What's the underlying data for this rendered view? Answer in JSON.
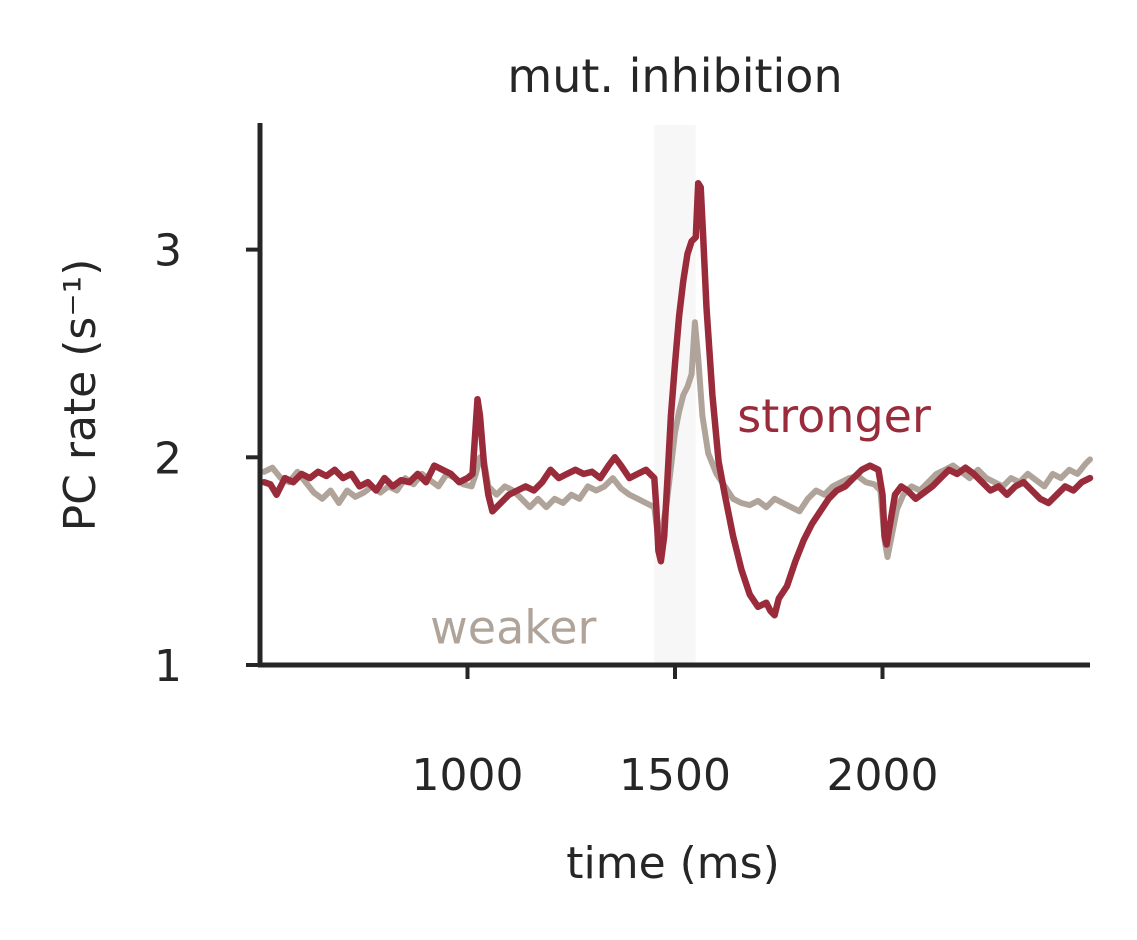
{
  "chart_data": {
    "type": "line",
    "title": "mut. inhibition",
    "xlabel": "time (ms)",
    "ylabel": "PC rate (s⁻¹)",
    "xlim": [
      500,
      2500
    ],
    "ylim": [
      1,
      3.6
    ],
    "xticks": [
      1000,
      1500,
      2000
    ],
    "xtick_labels": [
      "1000",
      "1500",
      "2000"
    ],
    "yticks": [
      1,
      2,
      3
    ],
    "ytick_labels": [
      "1",
      "2",
      "3"
    ],
    "grid": false,
    "legend": "none",
    "shaded_region": {
      "x0": 1450,
      "x1": 1550
    },
    "annotations": [
      {
        "text": "stronger",
        "x": 1650,
        "y": 2.2,
        "color": "#9a2b3a"
      },
      {
        "text": "weaker",
        "x": 910,
        "y": 1.18,
        "color": "#b0a49a"
      }
    ],
    "series": [
      {
        "color": "#b0a49a",
        "points": [
          [
            510,
            1.93
          ],
          [
            530,
            1.95
          ],
          [
            550,
            1.9
          ],
          [
            570,
            1.88
          ],
          [
            590,
            1.93
          ],
          [
            610,
            1.88
          ],
          [
            630,
            1.83
          ],
          [
            650,
            1.8
          ],
          [
            670,
            1.84
          ],
          [
            690,
            1.78
          ],
          [
            710,
            1.84
          ],
          [
            730,
            1.81
          ],
          [
            750,
            1.83
          ],
          [
            770,
            1.86
          ],
          [
            790,
            1.83
          ],
          [
            810,
            1.86
          ],
          [
            830,
            1.84
          ],
          [
            850,
            1.9
          ],
          [
            870,
            1.87
          ],
          [
            890,
            1.92
          ],
          [
            910,
            1.89
          ],
          [
            930,
            1.86
          ],
          [
            950,
            1.92
          ],
          [
            970,
            1.9
          ],
          [
            990,
            1.87
          ],
          [
            1010,
            1.86
          ],
          [
            1020,
            1.92
          ],
          [
            1030,
            2.0
          ],
          [
            1040,
            1.98
          ],
          [
            1050,
            1.86
          ],
          [
            1070,
            1.82
          ],
          [
            1090,
            1.86
          ],
          [
            1110,
            1.84
          ],
          [
            1130,
            1.8
          ],
          [
            1150,
            1.76
          ],
          [
            1170,
            1.8
          ],
          [
            1190,
            1.76
          ],
          [
            1210,
            1.8
          ],
          [
            1230,
            1.78
          ],
          [
            1250,
            1.82
          ],
          [
            1270,
            1.8
          ],
          [
            1290,
            1.86
          ],
          [
            1310,
            1.84
          ],
          [
            1330,
            1.86
          ],
          [
            1350,
            1.9
          ],
          [
            1370,
            1.85
          ],
          [
            1390,
            1.82
          ],
          [
            1410,
            1.8
          ],
          [
            1430,
            1.78
          ],
          [
            1450,
            1.76
          ],
          [
            1460,
            1.6
          ],
          [
            1470,
            1.66
          ],
          [
            1480,
            1.78
          ],
          [
            1490,
            1.95
          ],
          [
            1500,
            2.12
          ],
          [
            1510,
            2.22
          ],
          [
            1520,
            2.3
          ],
          [
            1530,
            2.34
          ],
          [
            1540,
            2.4
          ],
          [
            1548,
            2.65
          ],
          [
            1556,
            2.48
          ],
          [
            1566,
            2.2
          ],
          [
            1580,
            2.02
          ],
          [
            1600,
            1.92
          ],
          [
            1620,
            1.86
          ],
          [
            1640,
            1.8
          ],
          [
            1660,
            1.78
          ],
          [
            1680,
            1.77
          ],
          [
            1700,
            1.79
          ],
          [
            1720,
            1.76
          ],
          [
            1740,
            1.8
          ],
          [
            1760,
            1.78
          ],
          [
            1780,
            1.76
          ],
          [
            1800,
            1.74
          ],
          [
            1820,
            1.8
          ],
          [
            1840,
            1.84
          ],
          [
            1860,
            1.82
          ],
          [
            1880,
            1.86
          ],
          [
            1900,
            1.88
          ],
          [
            1920,
            1.9
          ],
          [
            1940,
            1.91
          ],
          [
            1960,
            1.88
          ],
          [
            1980,
            1.87
          ],
          [
            1995,
            1.84
          ],
          [
            2005,
            1.6
          ],
          [
            2012,
            1.52
          ],
          [
            2020,
            1.6
          ],
          [
            2035,
            1.75
          ],
          [
            2050,
            1.82
          ],
          [
            2070,
            1.86
          ],
          [
            2090,
            1.84
          ],
          [
            2110,
            1.88
          ],
          [
            2130,
            1.92
          ],
          [
            2150,
            1.94
          ],
          [
            2170,
            1.96
          ],
          [
            2190,
            1.93
          ],
          [
            2210,
            1.9
          ],
          [
            2230,
            1.94
          ],
          [
            2250,
            1.9
          ],
          [
            2270,
            1.88
          ],
          [
            2290,
            1.86
          ],
          [
            2310,
            1.9
          ],
          [
            2330,
            1.88
          ],
          [
            2350,
            1.92
          ],
          [
            2370,
            1.89
          ],
          [
            2390,
            1.86
          ],
          [
            2410,
            1.92
          ],
          [
            2430,
            1.9
          ],
          [
            2450,
            1.94
          ],
          [
            2470,
            1.92
          ],
          [
            2490,
            1.97
          ],
          [
            2500,
            1.99
          ]
        ]
      },
      {
        "color": "#9a2b3a",
        "points": [
          [
            510,
            1.88
          ],
          [
            525,
            1.87
          ],
          [
            540,
            1.82
          ],
          [
            560,
            1.9
          ],
          [
            580,
            1.88
          ],
          [
            600,
            1.92
          ],
          [
            620,
            1.9
          ],
          [
            640,
            1.93
          ],
          [
            660,
            1.91
          ],
          [
            680,
            1.94
          ],
          [
            700,
            1.9
          ],
          [
            720,
            1.92
          ],
          [
            740,
            1.86
          ],
          [
            760,
            1.88
          ],
          [
            780,
            1.84
          ],
          [
            800,
            1.9
          ],
          [
            820,
            1.86
          ],
          [
            840,
            1.89
          ],
          [
            860,
            1.88
          ],
          [
            880,
            1.92
          ],
          [
            900,
            1.88
          ],
          [
            920,
            1.96
          ],
          [
            940,
            1.94
          ],
          [
            960,
            1.92
          ],
          [
            980,
            1.88
          ],
          [
            1000,
            1.9
          ],
          [
            1012,
            1.92
          ],
          [
            1018,
            2.1
          ],
          [
            1024,
            2.28
          ],
          [
            1030,
            2.2
          ],
          [
            1040,
            1.96
          ],
          [
            1050,
            1.82
          ],
          [
            1060,
            1.74
          ],
          [
            1080,
            1.78
          ],
          [
            1100,
            1.82
          ],
          [
            1120,
            1.84
          ],
          [
            1140,
            1.86
          ],
          [
            1160,
            1.84
          ],
          [
            1180,
            1.88
          ],
          [
            1200,
            1.94
          ],
          [
            1220,
            1.9
          ],
          [
            1240,
            1.92
          ],
          [
            1260,
            1.94
          ],
          [
            1280,
            1.92
          ],
          [
            1300,
            1.93
          ],
          [
            1320,
            1.9
          ],
          [
            1340,
            1.96
          ],
          [
            1355,
            2.0
          ],
          [
            1370,
            1.96
          ],
          [
            1390,
            1.9
          ],
          [
            1410,
            1.92
          ],
          [
            1430,
            1.94
          ],
          [
            1450,
            1.9
          ],
          [
            1455,
            1.76
          ],
          [
            1460,
            1.55
          ],
          [
            1466,
            1.5
          ],
          [
            1474,
            1.62
          ],
          [
            1482,
            1.9
          ],
          [
            1490,
            2.2
          ],
          [
            1500,
            2.45
          ],
          [
            1510,
            2.68
          ],
          [
            1520,
            2.85
          ],
          [
            1530,
            2.98
          ],
          [
            1540,
            3.04
          ],
          [
            1550,
            3.06
          ],
          [
            1556,
            3.32
          ],
          [
            1562,
            3.3
          ],
          [
            1568,
            3.06
          ],
          [
            1576,
            2.72
          ],
          [
            1590,
            2.3
          ],
          [
            1605,
            1.98
          ],
          [
            1620,
            1.82
          ],
          [
            1640,
            1.62
          ],
          [
            1660,
            1.46
          ],
          [
            1680,
            1.34
          ],
          [
            1700,
            1.28
          ],
          [
            1720,
            1.3
          ],
          [
            1730,
            1.26
          ],
          [
            1740,
            1.24
          ],
          [
            1750,
            1.32
          ],
          [
            1770,
            1.38
          ],
          [
            1790,
            1.5
          ],
          [
            1810,
            1.6
          ],
          [
            1830,
            1.68
          ],
          [
            1850,
            1.74
          ],
          [
            1870,
            1.8
          ],
          [
            1890,
            1.84
          ],
          [
            1910,
            1.86
          ],
          [
            1930,
            1.9
          ],
          [
            1950,
            1.94
          ],
          [
            1970,
            1.96
          ],
          [
            1990,
            1.94
          ],
          [
            2000,
            1.82
          ],
          [
            2005,
            1.62
          ],
          [
            2010,
            1.58
          ],
          [
            2020,
            1.7
          ],
          [
            2030,
            1.82
          ],
          [
            2045,
            1.86
          ],
          [
            2060,
            1.84
          ],
          [
            2080,
            1.8
          ],
          [
            2100,
            1.83
          ],
          [
            2120,
            1.86
          ],
          [
            2140,
            1.9
          ],
          [
            2160,
            1.94
          ],
          [
            2180,
            1.92
          ],
          [
            2200,
            1.95
          ],
          [
            2220,
            1.92
          ],
          [
            2240,
            1.88
          ],
          [
            2260,
            1.84
          ],
          [
            2280,
            1.86
          ],
          [
            2300,
            1.82
          ],
          [
            2320,
            1.86
          ],
          [
            2340,
            1.88
          ],
          [
            2360,
            1.84
          ],
          [
            2380,
            1.8
          ],
          [
            2400,
            1.78
          ],
          [
            2420,
            1.82
          ],
          [
            2440,
            1.86
          ],
          [
            2460,
            1.84
          ],
          [
            2480,
            1.88
          ],
          [
            2500,
            1.9
          ]
        ]
      }
    ]
  }
}
